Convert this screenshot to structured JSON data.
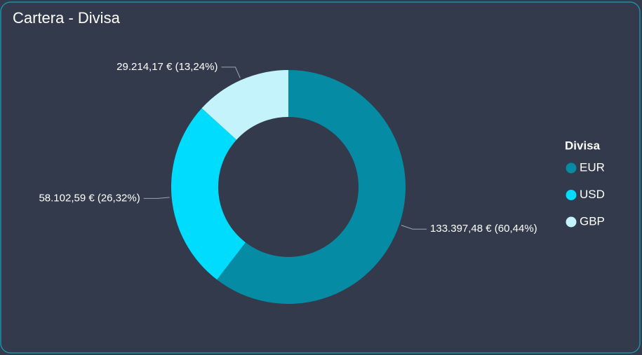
{
  "chart_data": {
    "type": "donut",
    "title": "Cartera - Divisa",
    "legend_title": "Divisa",
    "legend_position": "right",
    "categories": [
      "EUR",
      "USD",
      "GBP"
    ],
    "values": [
      133397.48,
      58102.59,
      29214.17
    ],
    "value_labels": [
      "133.397,48 € (60,44%)",
      "58.102,59 € (26,32%)",
      "29.214,17 € (13,24%)"
    ],
    "colors": [
      "#058ba4",
      "#00dcfe",
      "#c4f3fb"
    ]
  }
}
